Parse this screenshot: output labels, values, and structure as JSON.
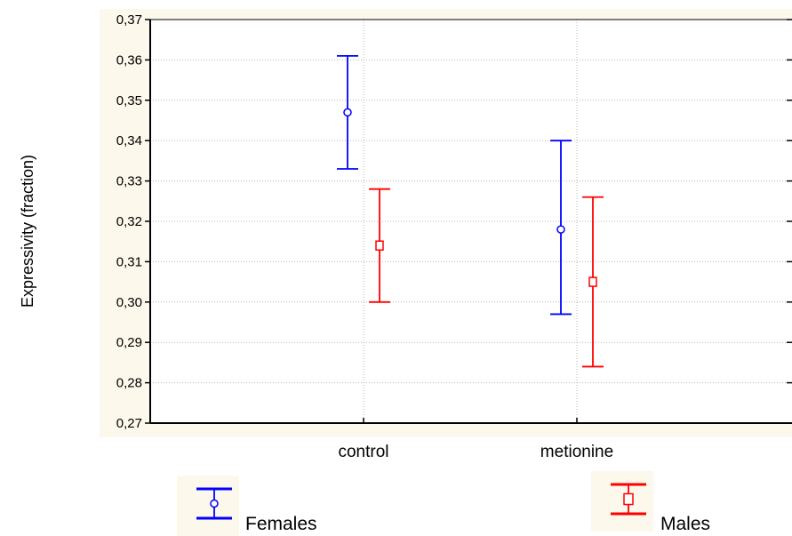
{
  "chart_data": {
    "type": "errorbar",
    "title": "",
    "xlabel": "",
    "ylabel": "Expressivity (fraction)",
    "ylim": [
      0.27,
      0.37
    ],
    "yticks": [
      "0,27",
      "0,28",
      "0,29",
      "0,30",
      "0,31",
      "0,32",
      "0,33",
      "0,34",
      "0,35",
      "0,36",
      "0,37"
    ],
    "categories": [
      "control",
      "metionine"
    ],
    "grid": true,
    "legend_position": "bottom",
    "series": [
      {
        "name": "Females",
        "color": "#0000ff",
        "marker": "circle",
        "mean": [
          0.347,
          0.318
        ],
        "lower": [
          0.333,
          0.297
        ],
        "upper": [
          0.361,
          0.34
        ]
      },
      {
        "name": "Males",
        "color": "#ff0000",
        "marker": "square",
        "mean": [
          0.314,
          0.305
        ],
        "lower": [
          0.3,
          0.284
        ],
        "upper": [
          0.328,
          0.326
        ]
      }
    ]
  }
}
